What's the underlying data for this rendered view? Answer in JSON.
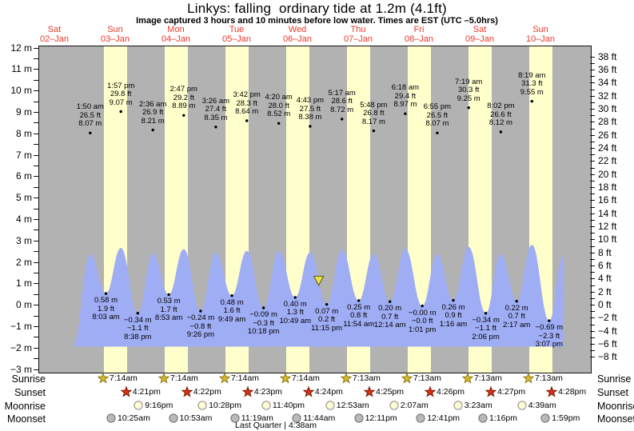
{
  "title": "Linkys: falling  ordinary tide at 1.2m (4.1ft)",
  "subtitle": "Image captured 3 hours and 10 minutes before low water. Times are EST (UTC –5.0hrs)",
  "colors": {
    "plot_background": "#b2b2b2",
    "daylight_band": "#ffffcc",
    "tide_area": "#9fadf4",
    "day_label": "#e8382a",
    "marker_fill": "#f0e23c",
    "sunrise_star": "#d9b92c",
    "sunset_star": "#d63218",
    "moonrise_circle": "#ffffd2",
    "moonset_circle": "#b9b9b9"
  },
  "chart_data": {
    "type": "area",
    "title": "Linkys: falling  ordinary tide at 1.2m (4.1ft)",
    "days": [
      {
        "weekday": "Sat",
        "date": "02–Jan"
      },
      {
        "weekday": "Sun",
        "date": "03–Jan"
      },
      {
        "weekday": "Mon",
        "date": "04–Jan"
      },
      {
        "weekday": "Tue",
        "date": "05–Jan"
      },
      {
        "weekday": "Wed",
        "date": "06–Jan"
      },
      {
        "weekday": "Thu",
        "date": "07–Jan"
      },
      {
        "weekday": "Fri",
        "date": "08–Jan"
      },
      {
        "weekday": "Sat",
        "date": "09–Jan"
      },
      {
        "weekday": "Sun",
        "date": "10–Jan"
      }
    ],
    "y_axis_left": {
      "unit": "m",
      "min": -3,
      "max": 12,
      "label_step": 1,
      "tick_step": 0.5
    },
    "y_axis_right": {
      "unit": "ft",
      "min": -8,
      "max": 38,
      "label_step": 2,
      "tick_step": 1
    },
    "tide_events": [
      {
        "type": "high",
        "day": 1,
        "time": "1:50 am",
        "ft": "26.5",
        "m": "8.07"
      },
      {
        "type": "low",
        "day": 1,
        "time": "8:03 am",
        "ft": "1.9",
        "m": "0.58"
      },
      {
        "type": "high",
        "day": 1,
        "time": "1:57 pm",
        "ft": "29.8",
        "m": "9.07"
      },
      {
        "type": "low",
        "day": 1,
        "time": "8:38 pm",
        "ft": "-1.1",
        "m": "-0.34"
      },
      {
        "type": "high",
        "day": 2,
        "time": "2:36 am",
        "ft": "26.9",
        "m": "8.21"
      },
      {
        "type": "low",
        "day": 2,
        "time": "8:53 am",
        "ft": "1.7",
        "m": "0.53"
      },
      {
        "type": "high",
        "day": 2,
        "time": "2:47 pm",
        "ft": "29.2",
        "m": "8.89"
      },
      {
        "type": "low",
        "day": 2,
        "time": "9:26 pm",
        "ft": "-0.8",
        "m": "-0.24"
      },
      {
        "type": "high",
        "day": 3,
        "time": "3:26 am",
        "ft": "27.4",
        "m": "8.35"
      },
      {
        "type": "low",
        "day": 3,
        "time": "9:49 am",
        "ft": "1.6",
        "m": "0.48"
      },
      {
        "type": "high",
        "day": 3,
        "time": "3:42 pm",
        "ft": "28.3",
        "m": "8.64"
      },
      {
        "type": "low",
        "day": 3,
        "time": "10:18 pm",
        "ft": "-0.3",
        "m": "-0.09"
      },
      {
        "type": "high",
        "day": 4,
        "time": "4:20 am",
        "ft": "28.0",
        "m": "8.52"
      },
      {
        "type": "low",
        "day": 4,
        "time": "10:49 am",
        "ft": "1.3",
        "m": "0.40"
      },
      {
        "type": "high",
        "day": 4,
        "time": "4:43 pm",
        "ft": "27.5",
        "m": "8.38"
      },
      {
        "type": "low",
        "day": 4,
        "time": "11:15 pm",
        "ft": "0.2",
        "m": "0.07"
      },
      {
        "type": "high",
        "day": 5,
        "time": "5:17 am",
        "ft": "28.6",
        "m": "8.72"
      },
      {
        "type": "low",
        "day": 5,
        "time": "11:54 am",
        "ft": "0.8",
        "m": "0.25"
      },
      {
        "type": "high",
        "day": 5,
        "time": "5:48 pm",
        "ft": "26.8",
        "m": "8.17"
      },
      {
        "type": "low",
        "day": 6,
        "time": "12:14 am",
        "ft": "0.7",
        "m": "0.20"
      },
      {
        "type": "high",
        "day": 6,
        "time": "6:18 am",
        "ft": "29.4",
        "m": "8.97"
      },
      {
        "type": "low",
        "day": 6,
        "time": "1:01 pm",
        "ft": "-0.0",
        "m": "-0.00"
      },
      {
        "type": "high",
        "day": 6,
        "time": "6:55 pm",
        "ft": "26.5",
        "m": "8.07"
      },
      {
        "type": "low",
        "day": 7,
        "time": "1:16 am",
        "ft": "0.9",
        "m": "0.26"
      },
      {
        "type": "high",
        "day": 7,
        "time": "7:19 am",
        "ft": "30.3",
        "m": "9.25"
      },
      {
        "type": "low",
        "day": 7,
        "time": "2:06 pm",
        "ft": "-1.1",
        "m": "-0.34"
      },
      {
        "type": "high",
        "day": 7,
        "time": "8:02 pm",
        "ft": "26.6",
        "m": "8.12"
      },
      {
        "type": "low",
        "day": 8,
        "time": "2:17 am",
        "ft": "0.7",
        "m": "0.22"
      },
      {
        "type": "high",
        "day": 8,
        "time": "8:19 am",
        "ft": "31.3",
        "m": "9.55"
      },
      {
        "type": "low",
        "day": 8,
        "time": "3:07 pm",
        "ft": "-2.3",
        "m": "-0.69"
      }
    ],
    "current_tide_marker": {
      "day": 4,
      "time": "8:05 pm",
      "height_m": 1.2
    }
  },
  "astro": {
    "rows": [
      {
        "label": "Sunrise",
        "icon": "sunrise-star",
        "events": [
          {
            "day": 1,
            "time": "7:14am"
          },
          {
            "day": 2,
            "time": "7:14am"
          },
          {
            "day": 3,
            "time": "7:14am"
          },
          {
            "day": 4,
            "time": "7:14am"
          },
          {
            "day": 5,
            "time": "7:13am"
          },
          {
            "day": 6,
            "time": "7:13am"
          },
          {
            "day": 7,
            "time": "7:13am"
          },
          {
            "day": 8,
            "time": "7:13am"
          }
        ]
      },
      {
        "label": "Sunset",
        "icon": "sunset-star",
        "events": [
          {
            "day": 1,
            "time": "4:21pm"
          },
          {
            "day": 2,
            "time": "4:22pm"
          },
          {
            "day": 3,
            "time": "4:23pm"
          },
          {
            "day": 4,
            "time": "4:24pm"
          },
          {
            "day": 5,
            "time": "4:25pm"
          },
          {
            "day": 6,
            "time": "4:26pm"
          },
          {
            "day": 7,
            "time": "4:27pm"
          },
          {
            "day": 8,
            "time": "4:28pm"
          }
        ]
      },
      {
        "label": "Moonrise",
        "icon": "moonrise-circle",
        "events": [
          {
            "day": 1,
            "time": "9:16pm"
          },
          {
            "day": 2,
            "time": "10:28pm"
          },
          {
            "day": 3,
            "time": "11:40pm"
          },
          {
            "day": 5,
            "time": "12:53am"
          },
          {
            "day": 6,
            "time": "2:07am"
          },
          {
            "day": 7,
            "time": "3:23am"
          },
          {
            "day": 8,
            "time": "4:39am"
          }
        ]
      },
      {
        "label": "Moonset",
        "icon": "moonset-circle",
        "events": [
          {
            "day": 1,
            "time": "10:25am"
          },
          {
            "day": 2,
            "time": "10:53am"
          },
          {
            "day": 3,
            "time": "11:19am"
          },
          {
            "day": 4,
            "time": "11:44am"
          },
          {
            "day": 5,
            "time": "12:11pm"
          },
          {
            "day": 6,
            "time": "12:41pm"
          },
          {
            "day": 7,
            "time": "1:16pm"
          },
          {
            "day": 8,
            "time": "1:59pm"
          }
        ]
      }
    ],
    "moon_phase": "Last Quarter | 4:38am"
  }
}
